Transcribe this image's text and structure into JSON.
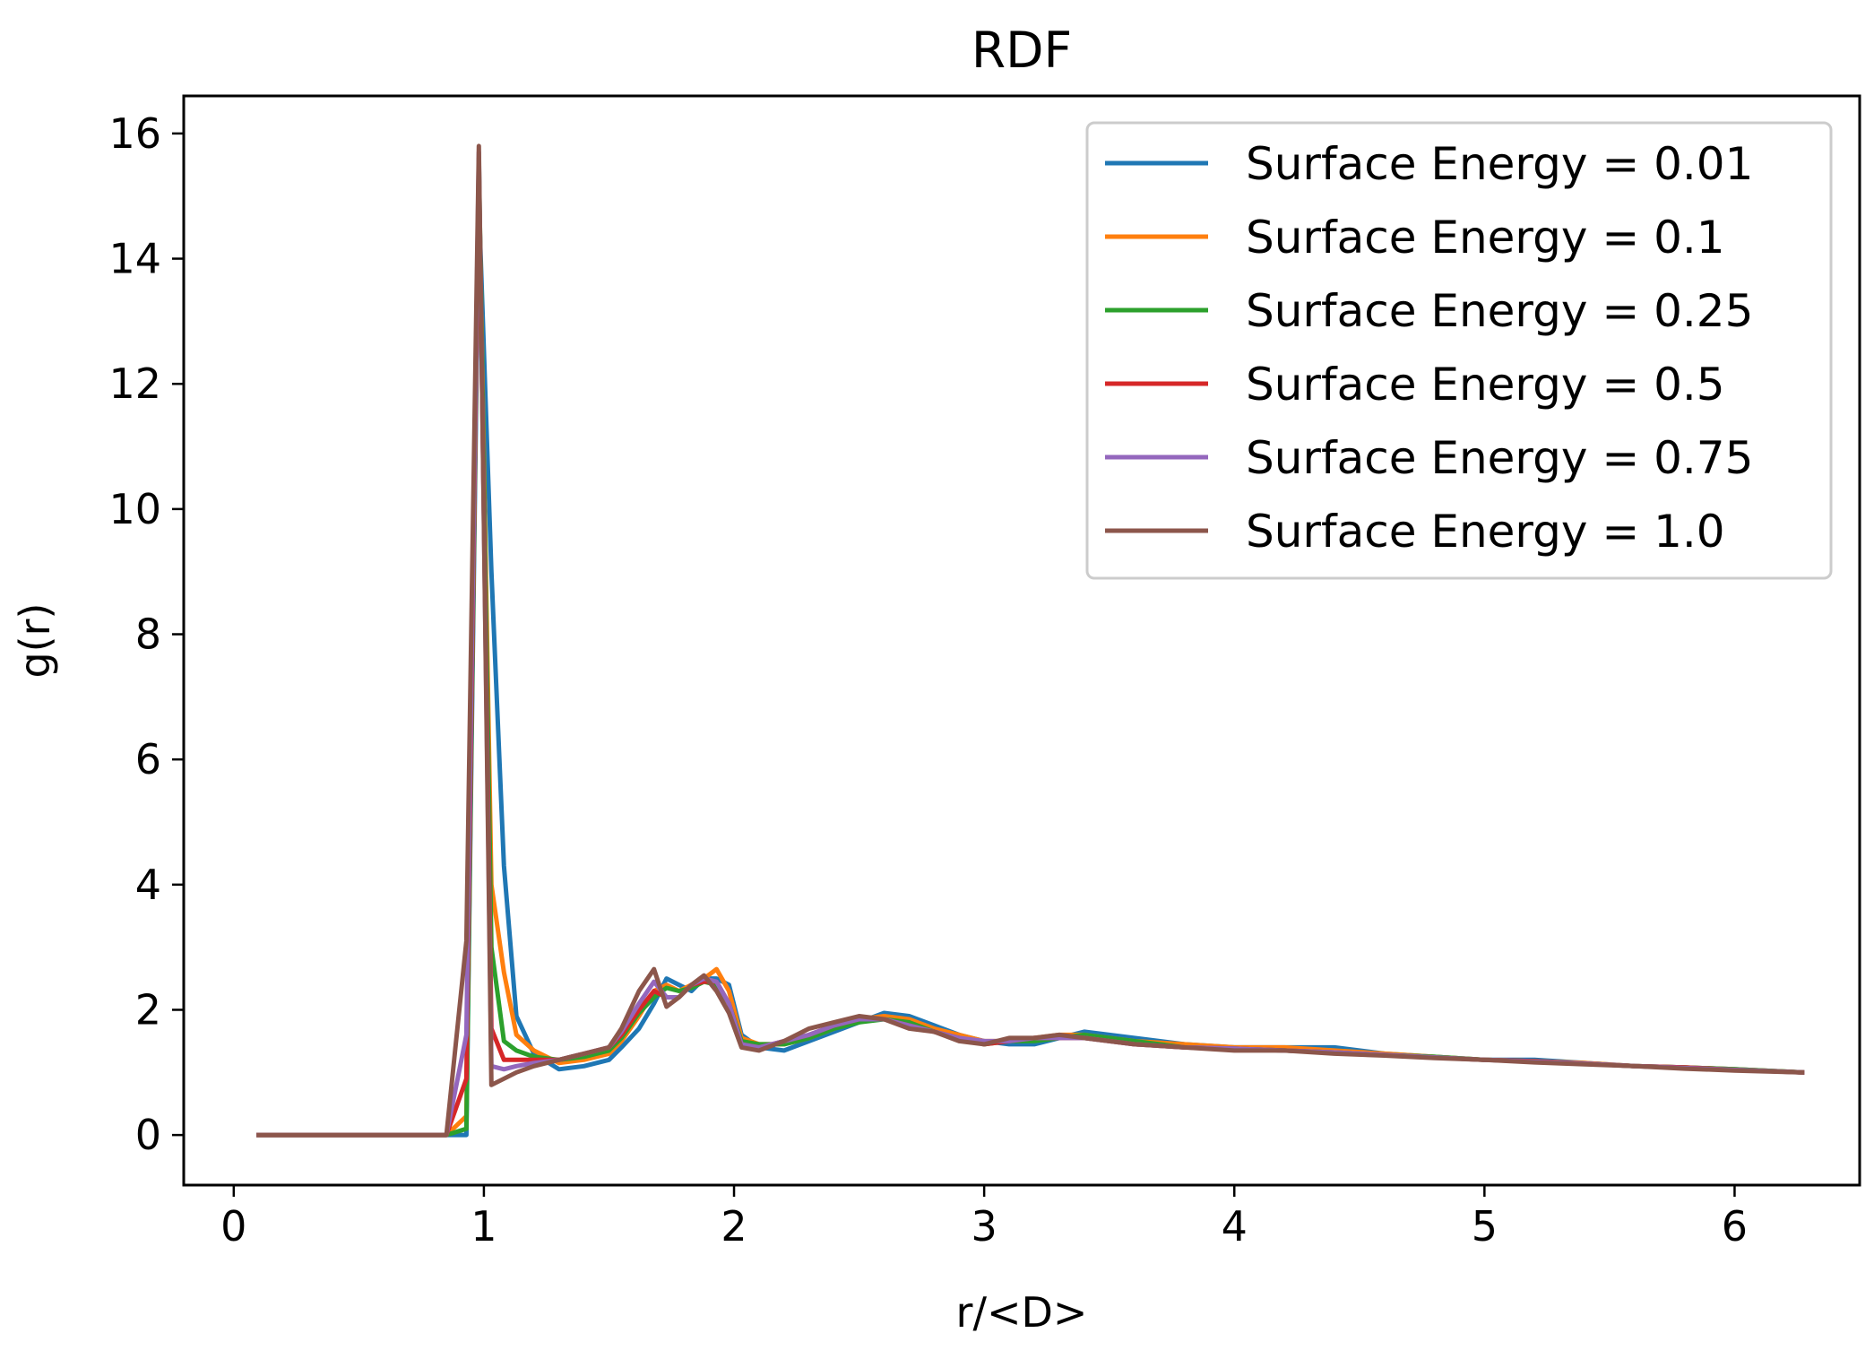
{
  "chart_data": {
    "type": "line",
    "title": "RDF",
    "xlabel": "r/<D>",
    "ylabel": "g(r)",
    "xlim": [
      -0.2,
      6.5
    ],
    "ylim": [
      -0.8,
      16.6
    ],
    "xticks": [
      0,
      1,
      2,
      3,
      4,
      5,
      6
    ],
    "yticks": [
      0,
      2,
      4,
      6,
      8,
      10,
      12,
      14,
      16
    ],
    "grid": false,
    "legend_position": "top-right",
    "x": [
      0.1,
      0.85,
      0.93,
      0.98,
      1.03,
      1.08,
      1.13,
      1.2,
      1.3,
      1.4,
      1.5,
      1.55,
      1.62,
      1.68,
      1.73,
      1.78,
      1.83,
      1.88,
      1.93,
      1.98,
      2.03,
      2.1,
      2.2,
      2.3,
      2.4,
      2.5,
      2.6,
      2.7,
      2.8,
      2.9,
      3.0,
      3.1,
      3.2,
      3.3,
      3.4,
      3.5,
      3.6,
      3.8,
      4.0,
      4.2,
      4.4,
      4.6,
      4.8,
      5.0,
      5.2,
      5.4,
      5.6,
      5.8,
      6.0,
      6.27
    ],
    "series": [
      {
        "name": "Surface Energy = 0.01",
        "color": "#1f77b4",
        "values": [
          0,
          0,
          0,
          14.9,
          9.0,
          4.3,
          1.9,
          1.3,
          1.05,
          1.1,
          1.2,
          1.4,
          1.7,
          2.1,
          2.5,
          2.4,
          2.3,
          2.5,
          2.5,
          2.4,
          1.6,
          1.4,
          1.35,
          1.5,
          1.65,
          1.8,
          1.95,
          1.9,
          1.75,
          1.6,
          1.5,
          1.45,
          1.45,
          1.55,
          1.65,
          1.6,
          1.55,
          1.45,
          1.4,
          1.4,
          1.4,
          1.3,
          1.25,
          1.2,
          1.2,
          1.15,
          1.1,
          1.08,
          1.05,
          1.0
        ]
      },
      {
        "name": "Surface Energy = 0.1",
        "color": "#ff7f0e",
        "values": [
          0,
          0,
          0.3,
          15.4,
          4.0,
          2.6,
          1.6,
          1.35,
          1.15,
          1.2,
          1.3,
          1.5,
          1.9,
          2.3,
          2.4,
          2.3,
          2.4,
          2.5,
          2.65,
          2.3,
          1.55,
          1.45,
          1.45,
          1.55,
          1.7,
          1.85,
          1.9,
          1.85,
          1.7,
          1.6,
          1.5,
          1.5,
          1.55,
          1.6,
          1.6,
          1.55,
          1.5,
          1.45,
          1.4,
          1.4,
          1.35,
          1.3,
          1.25,
          1.2,
          1.18,
          1.15,
          1.1,
          1.08,
          1.05,
          1.0
        ]
      },
      {
        "name": "Surface Energy = 0.25",
        "color": "#2ca02c",
        "values": [
          0,
          0,
          0.1,
          15.6,
          3.0,
          1.5,
          1.35,
          1.25,
          1.2,
          1.25,
          1.35,
          1.55,
          1.95,
          2.2,
          2.35,
          2.3,
          2.35,
          2.45,
          2.4,
          2.1,
          1.5,
          1.45,
          1.45,
          1.55,
          1.7,
          1.8,
          1.85,
          1.8,
          1.65,
          1.55,
          1.45,
          1.5,
          1.5,
          1.55,
          1.6,
          1.55,
          1.5,
          1.4,
          1.38,
          1.35,
          1.32,
          1.28,
          1.25,
          1.2,
          1.18,
          1.14,
          1.1,
          1.08,
          1.05,
          1.0
        ]
      },
      {
        "name": "Surface Energy = 0.5",
        "color": "#d62728",
        "values": [
          0,
          0,
          0.9,
          15.5,
          1.7,
          1.2,
          1.2,
          1.2,
          1.2,
          1.3,
          1.4,
          1.6,
          2.0,
          2.3,
          2.2,
          2.2,
          2.4,
          2.45,
          2.45,
          2.1,
          1.45,
          1.4,
          1.5,
          1.6,
          1.75,
          1.85,
          1.85,
          1.75,
          1.65,
          1.55,
          1.45,
          1.5,
          1.55,
          1.55,
          1.55,
          1.5,
          1.45,
          1.4,
          1.38,
          1.35,
          1.32,
          1.28,
          1.24,
          1.2,
          1.18,
          1.14,
          1.1,
          1.08,
          1.04,
          1.0
        ]
      },
      {
        "name": "Surface Energy = 0.75",
        "color": "#9467bd",
        "values": [
          0,
          0,
          1.6,
          15.7,
          1.1,
          1.05,
          1.1,
          1.15,
          1.2,
          1.3,
          1.4,
          1.65,
          2.1,
          2.45,
          2.2,
          2.2,
          2.4,
          2.5,
          2.45,
          2.1,
          1.45,
          1.4,
          1.5,
          1.6,
          1.75,
          1.85,
          1.85,
          1.75,
          1.65,
          1.55,
          1.5,
          1.5,
          1.55,
          1.55,
          1.55,
          1.5,
          1.45,
          1.4,
          1.38,
          1.35,
          1.32,
          1.28,
          1.24,
          1.2,
          1.17,
          1.14,
          1.1,
          1.07,
          1.04,
          1.0
        ]
      },
      {
        "name": "Surface Energy = 1.0",
        "color": "#8c564b",
        "values": [
          0,
          0,
          3.1,
          15.8,
          0.8,
          0.9,
          1.0,
          1.1,
          1.2,
          1.3,
          1.4,
          1.7,
          2.3,
          2.65,
          2.05,
          2.2,
          2.4,
          2.55,
          2.3,
          1.95,
          1.4,
          1.35,
          1.5,
          1.7,
          1.8,
          1.9,
          1.85,
          1.7,
          1.65,
          1.5,
          1.45,
          1.55,
          1.55,
          1.6,
          1.55,
          1.5,
          1.45,
          1.4,
          1.35,
          1.35,
          1.3,
          1.27,
          1.23,
          1.2,
          1.16,
          1.13,
          1.1,
          1.06,
          1.03,
          1.0
        ]
      }
    ]
  }
}
